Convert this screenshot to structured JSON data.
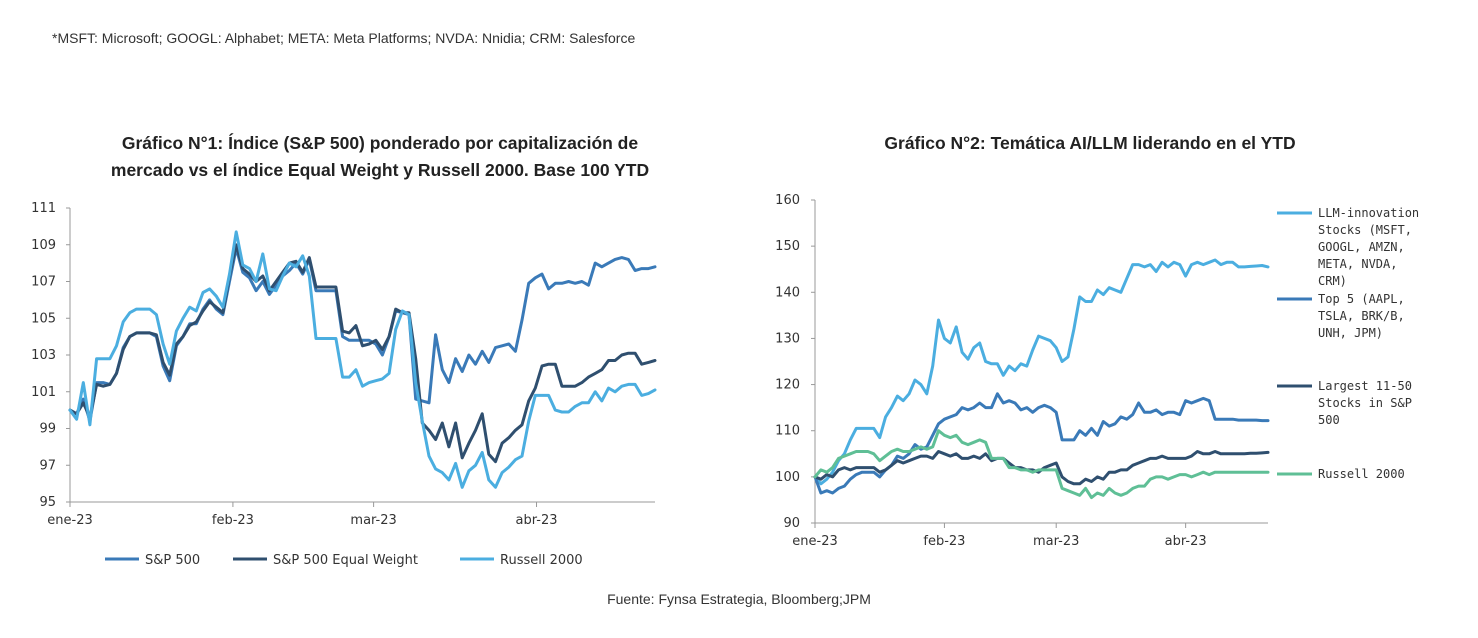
{
  "footnote": "*MSFT: Microsoft; GOOGL: Alphabet; META: Meta Platforms; NVDA: Nnidia; CRM: Salesforce",
  "source": "Fuente: Fynsa Estrategia, Bloomberg;JPM",
  "colors": {
    "dark_blue": "#3a7ab8",
    "navy": "#2f4f6f",
    "light_blue": "#4baee0",
    "green": "#5fbf96",
    "axis": "#999999"
  },
  "chart_data": [
    {
      "type": "line",
      "title": "Gráfico N°1: Índice (S&P 500) ponderado por capitalización de mercado vs el índice Equal Weight y Russell 2000. Base 100 YTD",
      "title_lines": [
        "Gráfico N°1: Índice (S&P 500) ponderado por capitalización de",
        "mercado vs el índice Equal Weight y Russell 2000. Base 100 YTD"
      ],
      "x_tick_labels": [
        "ene-23",
        "feb-23",
        "mar-23",
        "abr-23"
      ],
      "x_tick_positions": [
        0,
        22,
        41,
        63
      ],
      "x_range": [
        0,
        79
      ],
      "ylim": [
        95,
        111
      ],
      "y_ticks": [
        95,
        97,
        99,
        101,
        103,
        105,
        107,
        109,
        111
      ],
      "legend_position": "bottom",
      "series": [
        {
          "name": "S&P 500",
          "color": "#3a7ab8",
          "values": [
            100,
            99.8,
            100.6,
            99.4,
            101.5,
            101.5,
            101.4,
            102.0,
            103.4,
            104.0,
            104.2,
            104.2,
            104.2,
            104.0,
            102.4,
            101.6,
            103.5,
            104.0,
            104.7,
            104.7,
            105.5,
            106.0,
            105.5,
            105.2,
            107.0,
            108.8,
            107.5,
            107.2,
            106.5,
            107.0,
            106.3,
            106.8,
            107.3,
            107.6,
            108.0,
            107.4,
            108.2,
            106.5,
            106.5,
            106.5,
            106.5,
            104.0,
            103.8,
            103.8,
            103.8,
            103.8,
            103.6,
            103.0,
            104.0,
            105.4,
            105.3,
            105.2,
            100.6,
            100.5,
            100.4,
            104.1,
            102.2,
            101.5,
            102.8,
            102.1,
            103.0,
            102.5,
            103.2,
            102.6,
            103.4,
            103.5,
            103.6,
            103.2,
            104.9,
            106.9,
            107.2,
            107.4,
            106.6,
            106.9,
            106.9,
            107.0,
            106.9,
            107.0,
            106.8,
            108.0,
            107.8,
            108.0,
            108.2,
            108.3,
            108.2,
            107.6,
            107.7,
            107.7,
            107.8
          ]
        },
        {
          "name": "S&P 500 Equal Weight",
          "color": "#2f4f6f",
          "values": [
            100,
            99.8,
            100.4,
            99.6,
            101.4,
            101.3,
            101.4,
            102.0,
            103.3,
            104.0,
            104.2,
            104.2,
            104.2,
            104.1,
            102.6,
            101.9,
            103.6,
            104.0,
            104.6,
            104.8,
            105.4,
            105.9,
            105.6,
            105.3,
            107.3,
            109.0,
            107.7,
            107.4,
            107.0,
            107.3,
            106.5,
            107.0,
            107.5,
            108.0,
            108.1,
            107.5,
            108.3,
            106.7,
            106.7,
            106.7,
            106.7,
            104.3,
            104.2,
            104.6,
            103.5,
            103.6,
            103.8,
            103.3,
            104.0,
            105.5,
            105.3,
            105.3,
            102.8,
            99.3,
            98.9,
            98.4,
            99.3,
            98.0,
            99.3,
            97.4,
            98.2,
            98.9,
            99.8,
            97.6,
            97.2,
            98.2,
            98.5,
            98.9,
            99.2,
            100.5,
            101.2,
            102.4,
            102.5,
            102.5,
            101.3,
            101.3,
            101.3,
            101.5,
            101.8,
            102.0,
            102.2,
            102.7,
            102.7,
            103.0,
            103.1,
            103.1,
            102.5,
            102.6,
            102.7
          ]
        },
        {
          "name": "Russell 2000",
          "color": "#4baee0",
          "values": [
            100,
            99.5,
            101.5,
            99.2,
            102.8,
            102.8,
            102.8,
            103.5,
            104.8,
            105.3,
            105.5,
            105.5,
            105.5,
            105.2,
            103.6,
            102.5,
            104.3,
            105.0,
            105.6,
            105.4,
            106.4,
            106.6,
            106.2,
            105.6,
            107.4,
            109.7,
            107.9,
            107.7,
            107.0,
            108.5,
            106.6,
            106.5,
            107.3,
            108.0,
            107.8,
            108.4,
            107.3,
            103.9,
            103.9,
            103.9,
            103.9,
            101.8,
            101.8,
            102.2,
            101.3,
            101.5,
            101.6,
            101.7,
            102.0,
            104.4,
            105.4,
            105.2,
            101.5,
            99.4,
            97.5,
            96.8,
            96.6,
            96.2,
            97.1,
            95.8,
            96.7,
            97.0,
            97.7,
            96.2,
            95.8,
            96.6,
            96.9,
            97.3,
            97.5,
            99.4,
            100.8,
            100.8,
            100.8,
            100.0,
            99.9,
            99.9,
            100.2,
            100.4,
            100.4,
            101.0,
            100.5,
            101.2,
            101.0,
            101.3,
            101.4,
            101.4,
            100.8,
            100.9,
            101.1
          ]
        }
      ]
    },
    {
      "type": "line",
      "title": "Gráfico N°2: Temática AI/LLM liderando en el YTD",
      "x_tick_labels": [
        "ene-23",
        "feb-23",
        "mar-23",
        "abr-23"
      ],
      "x_tick_positions": [
        0,
        22,
        41,
        63
      ],
      "x_range": [
        0,
        77
      ],
      "ylim": [
        90,
        160
      ],
      "y_ticks": [
        90,
        100,
        110,
        120,
        130,
        140,
        150,
        160
      ],
      "legend_position": "right",
      "series": [
        {
          "name": "LLM-innovation Stocks (MSFT, GOOGL, AMZN, META, NVDA, CRM)",
          "legend_lines": [
            "LLM-innovation",
            "Stocks (MSFT,",
            "GOOGL, AMZN,",
            "META, NVDA,",
            "CRM)"
          ],
          "color": "#4baee0",
          "values": [
            100,
            98.5,
            99.5,
            101.0,
            103.5,
            105.0,
            108.0,
            110.5,
            110.5,
            110.5,
            110.5,
            108.5,
            113.0,
            115.0,
            117.5,
            116.5,
            118.0,
            121.0,
            120.0,
            118.0,
            124.0,
            134.0,
            130.0,
            129.0,
            132.5,
            127.0,
            125.5,
            128.0,
            129.0,
            125.0,
            124.5,
            124.5,
            122.0,
            124.0,
            123.0,
            124.5,
            124.0,
            127.5,
            130.5,
            130.0,
            129.5,
            128.0,
            125.0,
            126.0,
            132.0,
            139.0,
            138.0,
            138.0,
            140.5,
            139.5,
            141.0,
            140.5,
            140.0,
            143.0,
            146.0,
            146.0,
            145.5,
            146.0,
            144.5,
            146.5,
            145.5,
            146.5,
            146.0,
            143.5,
            146.0,
            146.5,
            146.0,
            146.5,
            147.0,
            146.0,
            146.5,
            146.5,
            145.5,
            145.5,
            145.6,
            145.7,
            145.8,
            145.5
          ]
        },
        {
          "name": "Top 5 (AAPL, TSLA, BRK/B, UNH, JPM)",
          "legend_lines": [
            "Top 5 (AAPL,",
            "TSLA, BRK/B,",
            "UNH, JPM)"
          ],
          "color": "#3a7ab8",
          "values": [
            100,
            96.5,
            97.0,
            96.5,
            97.5,
            98.0,
            99.5,
            100.5,
            101.0,
            101.0,
            101.0,
            100.0,
            101.5,
            102.5,
            104.5,
            104.0,
            105.0,
            107.0,
            106.0,
            106.5,
            109.0,
            111.5,
            112.5,
            113.0,
            113.5,
            115.0,
            114.5,
            115.0,
            116.0,
            115.0,
            115.0,
            118.0,
            116.0,
            116.5,
            116.0,
            114.5,
            115.0,
            114.0,
            115.0,
            115.5,
            115.0,
            114.0,
            108.0,
            108.0,
            108.0,
            110.0,
            109.0,
            110.5,
            109.0,
            112.0,
            111.0,
            111.5,
            113.0,
            112.5,
            113.5,
            116.0,
            114.0,
            114.0,
            114.5,
            113.5,
            114.0,
            114.0,
            113.5,
            116.5,
            116.0,
            116.5,
            117.0,
            116.5,
            112.5,
            112.5,
            112.5,
            112.5,
            112.3,
            112.3,
            112.3,
            112.3,
            112.2,
            112.2
          ]
        },
        {
          "name": "Largest 11-50 Stocks in S&P 500",
          "legend_lines": [
            "Largest 11-50",
            "Stocks in S&P",
            "500"
          ],
          "color": "#2f4f6f",
          "values": [
            100,
            99.5,
            100.5,
            100.0,
            101.5,
            102.0,
            101.5,
            102.0,
            102.0,
            102.0,
            102.0,
            101.0,
            101.5,
            102.5,
            103.5,
            103.0,
            103.5,
            104.0,
            104.5,
            104.5,
            104.0,
            105.5,
            105.0,
            104.5,
            105.0,
            104.0,
            104.0,
            104.5,
            104.0,
            105.0,
            103.5,
            104.0,
            104.0,
            103.0,
            102.0,
            102.0,
            101.5,
            101.5,
            101.0,
            102.0,
            102.5,
            103.0,
            100.0,
            99.0,
            98.5,
            98.5,
            99.5,
            99.0,
            100.0,
            99.5,
            101.0,
            101.0,
            101.5,
            101.5,
            102.5,
            103.0,
            103.5,
            104.0,
            104.0,
            104.5,
            104.0,
            104.0,
            104.0,
            104.0,
            104.5,
            105.5,
            105.0,
            105.0,
            105.5,
            105.0,
            105.0,
            105.0,
            105.0,
            105.0,
            105.1,
            105.1,
            105.2,
            105.3
          ]
        },
        {
          "name": "Russell 2000",
          "legend_lines": [
            "Russell 2000"
          ],
          "color": "#5fbf96",
          "values": [
            100,
            101.5,
            101.0,
            102.0,
            104.0,
            104.5,
            105.0,
            105.5,
            105.5,
            105.5,
            105.0,
            103.5,
            104.5,
            105.5,
            106.0,
            105.5,
            105.5,
            106.0,
            106.5,
            106.0,
            106.5,
            110.0,
            109.0,
            108.5,
            109.0,
            107.5,
            107.0,
            107.5,
            108.0,
            107.5,
            104.0,
            104.0,
            104.0,
            102.0,
            102.0,
            101.5,
            101.5,
            101.0,
            101.5,
            101.5,
            101.5,
            101.5,
            97.5,
            97.0,
            96.5,
            96.0,
            97.5,
            95.5,
            96.5,
            96.0,
            97.5,
            96.5,
            96.0,
            96.5,
            97.5,
            98.0,
            98.0,
            99.5,
            100.0,
            100.0,
            99.5,
            100.0,
            100.5,
            100.5,
            100.0,
            100.5,
            101.0,
            100.5,
            101.0,
            101.0,
            101.0,
            101.0,
            101.0,
            101.0,
            101.0,
            101.0,
            101.0,
            101.0
          ]
        }
      ]
    }
  ]
}
